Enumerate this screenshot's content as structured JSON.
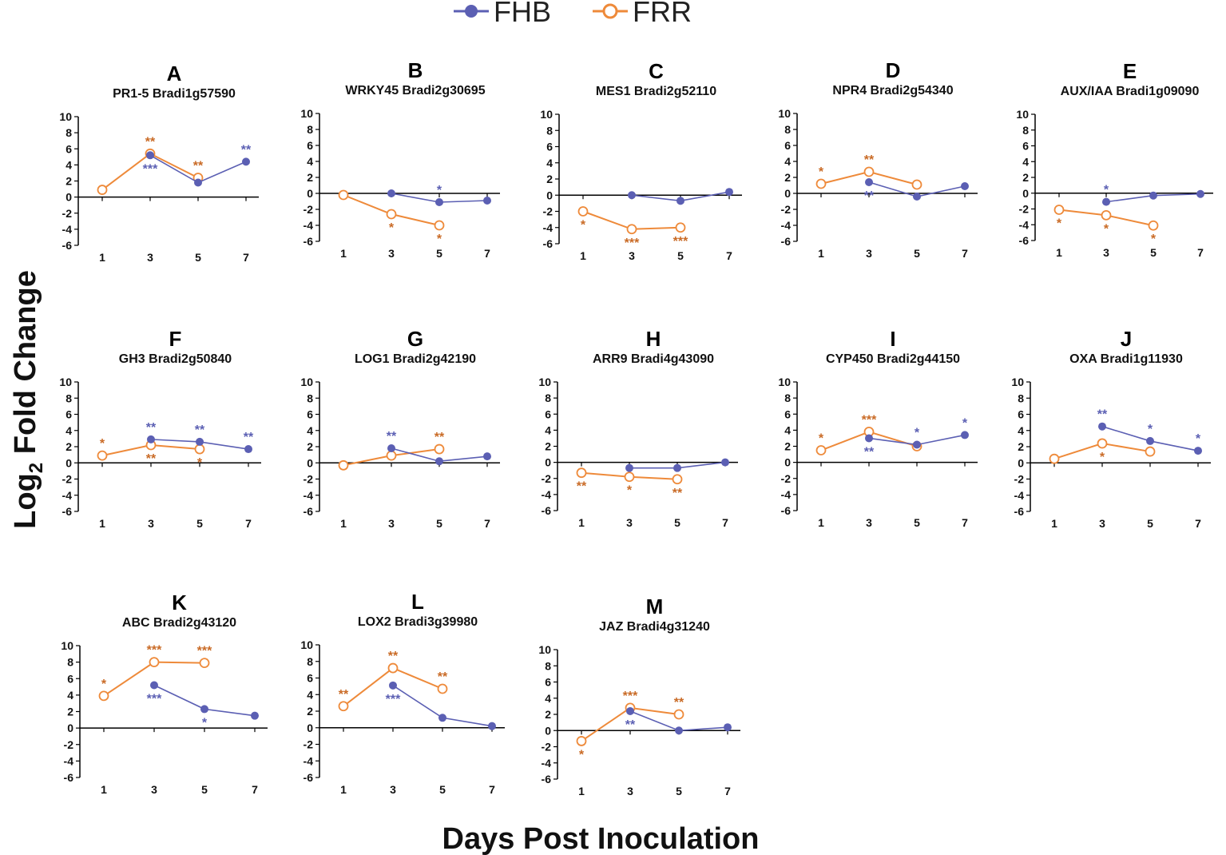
{
  "legend": {
    "fhb_label": "FHB",
    "frr_label": "FRR"
  },
  "colors": {
    "FHB": "#5b5fb3",
    "FRR": "#ee8a3a",
    "FHB_sig": "#5b5fb3",
    "FRR_sig": "#c96a25",
    "axis": "#000000"
  },
  "ylabel": {
    "prefix": "Log",
    "subscript": "2",
    "suffix": " Fold Change"
  },
  "xlabel": "Days Post Inoculation",
  "chart_data": [
    {
      "type": "line",
      "letter": "A",
      "title": "PR1-5  Bradi1g57590",
      "xlabel": "Days Post Inoculation",
      "ylabel": "Log2 Fold Change",
      "x": [
        1,
        3,
        5,
        7
      ],
      "ylim": [
        -6,
        10
      ],
      "yticks": [
        10,
        8,
        6,
        4,
        2,
        0,
        -2,
        -4,
        -6
      ],
      "series": [
        {
          "name": "FHB",
          "values": [
            null,
            5.2,
            1.8,
            4.4
          ],
          "sig": [
            "",
            "***",
            "",
            "**"
          ]
        },
        {
          "name": "FRR",
          "values": [
            0.9,
            5.4,
            2.4,
            null
          ],
          "sig": [
            "",
            "**",
            "**",
            ""
          ]
        }
      ]
    },
    {
      "type": "line",
      "letter": "B",
      "title": "WRKY45  Bradi2g30695",
      "xlabel": "Days Post Inoculation",
      "ylabel": "Log2 Fold Change",
      "x": [
        1,
        3,
        5,
        7
      ],
      "ylim": [
        -6,
        10
      ],
      "yticks": [
        10,
        8,
        6,
        4,
        2,
        0,
        -2,
        -4,
        -6
      ],
      "series": [
        {
          "name": "FHB",
          "values": [
            null,
            0.0,
            -1.1,
            -0.9
          ],
          "sig": [
            "",
            "",
            "*",
            ""
          ]
        },
        {
          "name": "FRR",
          "values": [
            -0.2,
            -2.6,
            -4.0,
            null
          ],
          "sig": [
            "",
            "*",
            "*",
            ""
          ]
        }
      ]
    },
    {
      "type": "line",
      "letter": "C",
      "title": "MES1  Bradi2g52110",
      "xlabel": "Days Post Inoculation",
      "ylabel": "Log2 Fold Change",
      "x": [
        1,
        3,
        5,
        7
      ],
      "ylim": [
        -6,
        10
      ],
      "yticks": [
        10,
        8,
        6,
        4,
        2,
        0,
        -2,
        -4,
        -6
      ],
      "series": [
        {
          "name": "FHB",
          "values": [
            null,
            0.0,
            -0.7,
            0.4
          ],
          "sig": [
            "",
            "",
            "",
            ""
          ]
        },
        {
          "name": "FRR",
          "values": [
            -2.0,
            -4.2,
            -4.0,
            null
          ],
          "sig": [
            "*",
            "***",
            "***",
            ""
          ]
        }
      ]
    },
    {
      "type": "line",
      "letter": "D",
      "title": "NPR4  Bradi2g54340",
      "xlabel": "Days Post Inoculation",
      "ylabel": "Log2 Fold Change",
      "x": [
        1,
        3,
        5,
        7
      ],
      "ylim": [
        -6,
        10
      ],
      "yticks": [
        10,
        8,
        6,
        4,
        2,
        0,
        -2,
        -4,
        -6
      ],
      "series": [
        {
          "name": "FHB",
          "values": [
            null,
            1.4,
            -0.4,
            0.9
          ],
          "sig": [
            "",
            "**",
            "",
            ""
          ]
        },
        {
          "name": "FRR",
          "values": [
            1.2,
            2.7,
            1.1,
            null
          ],
          "sig": [
            "*",
            "**",
            "",
            ""
          ]
        }
      ]
    },
    {
      "type": "line",
      "letter": "E",
      "title": "AUX/IAA  Bradi1g09090",
      "xlabel": "Days Post Inoculation",
      "ylabel": "Log2 Fold Change",
      "x": [
        1,
        3,
        5,
        7
      ],
      "ylim": [
        -6,
        10
      ],
      "yticks": [
        10,
        8,
        6,
        4,
        2,
        0,
        -2,
        -4,
        -6
      ],
      "series": [
        {
          "name": "FHB",
          "values": [
            null,
            -1.1,
            -0.3,
            -0.1
          ],
          "sig": [
            "",
            "*",
            "",
            ""
          ]
        },
        {
          "name": "FRR",
          "values": [
            -2.1,
            -2.8,
            -4.1,
            null
          ],
          "sig": [
            "*",
            "*",
            "*",
            ""
          ]
        }
      ]
    },
    {
      "type": "line",
      "letter": "F",
      "title": "GH3  Bradi2g50840",
      "xlabel": "Days Post Inoculation",
      "ylabel": "Log2 Fold Change",
      "x": [
        1,
        3,
        5,
        7
      ],
      "ylim": [
        -6,
        10
      ],
      "yticks": [
        10,
        8,
        6,
        4,
        2,
        0,
        -2,
        -4,
        -6
      ],
      "series": [
        {
          "name": "FHB",
          "values": [
            null,
            2.9,
            2.6,
            1.7
          ],
          "sig": [
            "",
            "**",
            "**",
            "**"
          ]
        },
        {
          "name": "FRR",
          "values": [
            0.9,
            2.2,
            1.7,
            null
          ],
          "sig": [
            "*",
            "**",
            "*",
            ""
          ]
        }
      ]
    },
    {
      "type": "line",
      "letter": "G",
      "title": "LOG1  Bradi2g42190",
      "xlabel": "Days Post Inoculation",
      "ylabel": "Log2 Fold Change",
      "x": [
        1,
        3,
        5,
        7
      ],
      "ylim": [
        -6,
        10
      ],
      "yticks": [
        10,
        8,
        6,
        4,
        2,
        0,
        -2,
        -4,
        -6
      ],
      "series": [
        {
          "name": "FHB",
          "values": [
            null,
            1.8,
            0.2,
            0.8
          ],
          "sig": [
            "",
            "**",
            "",
            ""
          ]
        },
        {
          "name": "FRR",
          "values": [
            -0.3,
            0.9,
            1.7,
            null
          ],
          "sig": [
            "",
            "",
            "**",
            ""
          ]
        }
      ]
    },
    {
      "type": "line",
      "letter": "H",
      "title": "ARR9  Bradi4g43090",
      "xlabel": "Days Post Inoculation",
      "ylabel": "Log2 Fold Change",
      "x": [
        1,
        3,
        5,
        7
      ],
      "ylim": [
        -6,
        10
      ],
      "yticks": [
        10,
        8,
        6,
        4,
        2,
        0,
        -2,
        -4,
        -6
      ],
      "series": [
        {
          "name": "FHB",
          "values": [
            null,
            -0.7,
            -0.7,
            0.0
          ],
          "sig": [
            "",
            "",
            "",
            ""
          ]
        },
        {
          "name": "FRR",
          "values": [
            -1.3,
            -1.8,
            -2.1,
            null
          ],
          "sig": [
            "**",
            "*",
            "**",
            ""
          ]
        }
      ]
    },
    {
      "type": "line",
      "letter": "I",
      "title": "CYP450  Bradi2g44150",
      "xlabel": "Days Post Inoculation",
      "ylabel": "Log2 Fold Change",
      "x": [
        1,
        3,
        5,
        7
      ],
      "ylim": [
        -6,
        10
      ],
      "yticks": [
        10,
        8,
        6,
        4,
        2,
        0,
        -2,
        -4,
        -6
      ],
      "series": [
        {
          "name": "FHB",
          "values": [
            null,
            3.0,
            2.2,
            3.4
          ],
          "sig": [
            "",
            "**",
            "*",
            "*"
          ]
        },
        {
          "name": "FRR",
          "values": [
            1.5,
            3.8,
            2.0,
            null
          ],
          "sig": [
            "*",
            "***",
            "",
            ""
          ]
        }
      ]
    },
    {
      "type": "line",
      "letter": "J",
      "title": "OXA  Bradi1g11930",
      "xlabel": "Days Post Inoculation",
      "ylabel": "Log2 Fold Change",
      "x": [
        1,
        3,
        5,
        7
      ],
      "ylim": [
        -6,
        10
      ],
      "yticks": [
        10,
        8,
        6,
        4,
        2,
        0,
        -2,
        -4,
        -6
      ],
      "series": [
        {
          "name": "FHB",
          "values": [
            null,
            4.5,
            2.7,
            1.5
          ],
          "sig": [
            "",
            "**",
            "*",
            "*"
          ]
        },
        {
          "name": "FRR",
          "values": [
            0.5,
            2.4,
            1.4,
            null
          ],
          "sig": [
            "",
            "*",
            "",
            ""
          ]
        }
      ]
    },
    {
      "type": "line",
      "letter": "K",
      "title": "ABC  Bradi2g43120",
      "xlabel": "Days Post Inoculation",
      "ylabel": "Log2 Fold Change",
      "x": [
        1,
        3,
        5,
        7
      ],
      "ylim": [
        -6,
        10
      ],
      "yticks": [
        10,
        8,
        6,
        4,
        2,
        0,
        -2,
        -4,
        -6
      ],
      "series": [
        {
          "name": "FHB",
          "values": [
            null,
            5.2,
            2.3,
            1.5
          ],
          "sig": [
            "",
            "***",
            "*",
            ""
          ]
        },
        {
          "name": "FRR",
          "values": [
            3.9,
            8.0,
            7.9,
            null
          ],
          "sig": [
            "*",
            "***",
            "***",
            ""
          ]
        }
      ]
    },
    {
      "type": "line",
      "letter": "L",
      "title": "LOX2  Bradi3g39980",
      "xlabel": "Days Post Inoculation",
      "ylabel": "Log2 Fold Change",
      "x": [
        1,
        3,
        5,
        7
      ],
      "ylim": [
        -6,
        10
      ],
      "yticks": [
        10,
        8,
        6,
        4,
        2,
        0,
        -2,
        -4,
        -6
      ],
      "series": [
        {
          "name": "FHB",
          "values": [
            null,
            5.1,
            1.2,
            0.2
          ],
          "sig": [
            "",
            "***",
            "",
            ""
          ]
        },
        {
          "name": "FRR",
          "values": [
            2.6,
            7.2,
            4.7,
            null
          ],
          "sig": [
            "**",
            "**",
            "**",
            ""
          ]
        }
      ]
    },
    {
      "type": "line",
      "letter": "M",
      "title": "JAZ  Bradi4g31240",
      "xlabel": "Days Post Inoculation",
      "ylabel": "Log2 Fold Change",
      "x": [
        1,
        3,
        5,
        7
      ],
      "ylim": [
        -6,
        10
      ],
      "yticks": [
        10,
        8,
        6,
        4,
        2,
        0,
        -2,
        -4,
        -6
      ],
      "series": [
        {
          "name": "FHB",
          "values": [
            null,
            2.4,
            0.0,
            0.4
          ],
          "sig": [
            "",
            "**",
            "",
            ""
          ]
        },
        {
          "name": "FRR",
          "values": [
            -1.3,
            2.8,
            2.0,
            null
          ],
          "sig": [
            "*",
            "***",
            "**",
            ""
          ]
        }
      ]
    }
  ]
}
